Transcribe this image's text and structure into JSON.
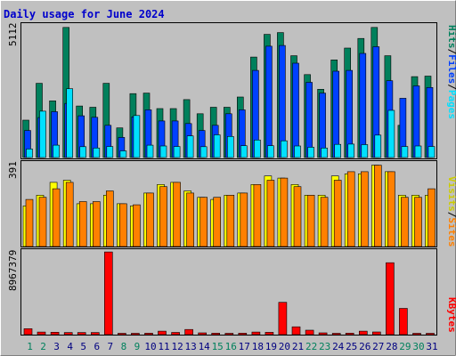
{
  "title": "Daily usage for June 2024",
  "colors": {
    "background": "#c0c0c0",
    "title": "#0000cc",
    "hits": "#00805c",
    "files": "#0040ff",
    "pages": "#00e0ff",
    "visits": "#ffff00",
    "sites": "#ff8000",
    "kbytes": "#ff0000",
    "weekday_label": "#000080",
    "weekend_label": "#00805c"
  },
  "legend": {
    "pages": "Pages",
    "files": "Files",
    "hits": "Hits",
    "sites": "Sites",
    "visits": "Visits",
    "kbytes": "KBytes",
    "sep": "/"
  },
  "chart_data": [
    {
      "type": "bar",
      "ymax_label": "5112",
      "ylim": [
        0,
        5112
      ],
      "categories": [
        "1",
        "2",
        "3",
        "4",
        "5",
        "6",
        "7",
        "8",
        "9",
        "10",
        "11",
        "12",
        "13",
        "14",
        "15",
        "16",
        "17",
        "18",
        "19",
        "20",
        "21",
        "22",
        "23",
        "24",
        "25",
        "26",
        "27",
        "28",
        "29",
        "30",
        "31"
      ],
      "weekend_days": [
        1,
        2,
        8,
        9,
        15,
        16,
        22,
        23,
        29,
        30
      ],
      "series": [
        {
          "name": "Hits",
          "values": [
            1450,
            2880,
            2200,
            5050,
            2000,
            1950,
            2880,
            1150,
            2480,
            2500,
            1900,
            1900,
            2250,
            1700,
            1950,
            1950,
            2350,
            3900,
            4780,
            4850,
            3950,
            3220,
            2650,
            3790,
            4250,
            4620,
            5050,
            3950,
            1250,
            3140,
            3160
          ]
        },
        {
          "name": "Files",
          "values": [
            1050,
            1550,
            1780,
            2100,
            1620,
            1560,
            1250,
            780,
            1580,
            1850,
            1420,
            1420,
            1320,
            1050,
            1250,
            1700,
            1850,
            3380,
            4320,
            4350,
            3660,
            2920,
            2500,
            3350,
            3380,
            4040,
            4300,
            2980,
            2300,
            2780,
            2720
          ]
        },
        {
          "name": "Pages",
          "values": [
            330,
            1800,
            480,
            2670,
            420,
            370,
            430,
            260,
            1630,
            480,
            450,
            430,
            840,
            420,
            880,
            820,
            460,
            680,
            460,
            650,
            450,
            400,
            370,
            510,
            520,
            500,
            870,
            1830,
            430,
            450,
            430
          ]
        }
      ]
    },
    {
      "type": "bar",
      "ymax_label": "391",
      "ylim": [
        0,
        391
      ],
      "categories": [
        "1",
        "2",
        "3",
        "4",
        "5",
        "6",
        "7",
        "8",
        "9",
        "10",
        "11",
        "12",
        "13",
        "14",
        "15",
        "16",
        "17",
        "18",
        "19",
        "20",
        "21",
        "22",
        "23",
        "24",
        "25",
        "26",
        "27",
        "28",
        "29",
        "30",
        "31"
      ],
      "series": [
        {
          "name": "Visits",
          "values": [
            190,
            240,
            300,
            310,
            200,
            200,
            240,
            200,
            190,
            250,
            290,
            300,
            260,
            230,
            220,
            240,
            250,
            290,
            330,
            320,
            290,
            240,
            240,
            330,
            340,
            340,
            380,
            350,
            240,
            240,
            240
          ]
        },
        {
          "name": "Sites",
          "values": [
            220,
            230,
            270,
            300,
            210,
            210,
            260,
            200,
            195,
            250,
            280,
            300,
            250,
            230,
            230,
            240,
            250,
            290,
            310,
            320,
            280,
            240,
            230,
            310,
            350,
            350,
            380,
            350,
            230,
            230,
            270
          ]
        }
      ]
    },
    {
      "type": "bar",
      "ymax_label": "8967379",
      "ylim": [
        0,
        8967379
      ],
      "categories": [
        "1",
        "2",
        "3",
        "4",
        "5",
        "6",
        "7",
        "8",
        "9",
        "10",
        "11",
        "12",
        "13",
        "14",
        "15",
        "16",
        "17",
        "18",
        "19",
        "20",
        "21",
        "22",
        "23",
        "24",
        "25",
        "26",
        "27",
        "28",
        "29",
        "30",
        "31"
      ],
      "series": [
        {
          "name": "KBytes",
          "values": [
            650000,
            280000,
            260000,
            230000,
            230000,
            230000,
            8960000,
            140000,
            140000,
            150000,
            380000,
            240000,
            560000,
            190000,
            150000,
            140000,
            150000,
            280000,
            250000,
            3500000,
            850000,
            480000,
            190000,
            140000,
            160000,
            380000,
            290000,
            7790000,
            2840000,
            140000,
            140000
          ]
        }
      ]
    }
  ]
}
